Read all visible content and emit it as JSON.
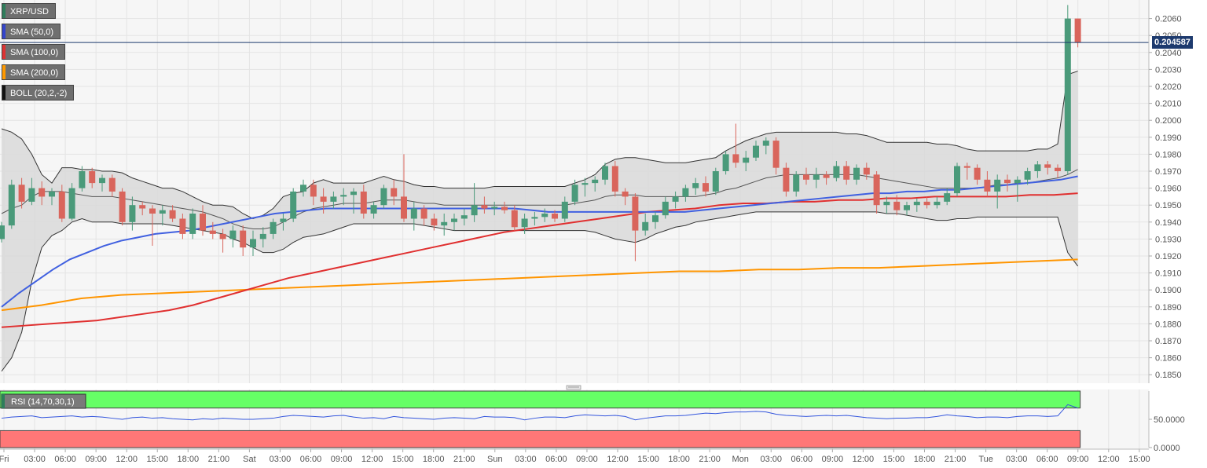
{
  "legend": [
    {
      "label": "XRP/USD",
      "color": "#2e7d5b"
    },
    {
      "label": "SMA (50,0)",
      "color": "#3344cc"
    },
    {
      "label": "SMA (100,0)",
      "color": "#dd3333"
    },
    {
      "label": "SMA (200,0)",
      "color": "#ff9900"
    },
    {
      "label": "BOLL (20,2,-2)",
      "color": "#111111"
    }
  ],
  "rsi_label": "RSI (14,70,30,1)",
  "current_price": "0.204587",
  "colors": {
    "up": "#4a9a7a",
    "down": "#d9655c",
    "sma50": "#4060e0",
    "sma100": "#e03030",
    "sma200": "#ff9500",
    "boll": "#333333",
    "rsi": "#3355dd",
    "overbought": "#66ff66",
    "oversold": "#ff7777"
  },
  "chart_data": {
    "type": "candlestick",
    "symbol": "XRP/USD",
    "ylim": [
      0.1845,
      0.207
    ],
    "y_ticks": [
      "0.2060",
      "0.2050",
      "0.2040",
      "0.2030",
      "0.2020",
      "0.2010",
      "0.2000",
      "0.1990",
      "0.1980",
      "0.1970",
      "0.1960",
      "0.1950",
      "0.1940",
      "0.1930",
      "0.1920",
      "0.1910",
      "0.1900",
      "0.1890",
      "0.1880",
      "0.1870",
      "0.1860",
      "0.1850"
    ],
    "x_ticks": [
      "Fri",
      "03:00",
      "06:00",
      "09:00",
      "12:00",
      "15:00",
      "18:00",
      "21:00",
      "Sat",
      "03:00",
      "06:00",
      "09:00",
      "12:00",
      "15:00",
      "18:00",
      "21:00",
      "Sun",
      "03:00",
      "06:00",
      "09:00",
      "12:00",
      "15:00",
      "18:00",
      "21:00",
      "Mon",
      "03:00",
      "06:00",
      "09:00",
      "12:00",
      "15:00",
      "18:00",
      "21:00",
      "Tue",
      "03:00",
      "06:00",
      "09:00",
      "12:00",
      "15:00"
    ],
    "candles": [
      [
        0.193,
        0.194,
        0.1928,
        0.1938
      ],
      [
        0.1938,
        0.1965,
        0.1936,
        0.1962
      ],
      [
        0.1962,
        0.1966,
        0.1948,
        0.1952
      ],
      [
        0.1952,
        0.1966,
        0.195,
        0.196
      ],
      [
        0.196,
        0.1964,
        0.195,
        0.1955
      ],
      [
        0.1955,
        0.196,
        0.195,
        0.1958
      ],
      [
        0.1958,
        0.1962,
        0.194,
        0.1942
      ],
      [
        0.1942,
        0.1963,
        0.1941,
        0.196
      ],
      [
        0.196,
        0.1973,
        0.1958,
        0.197
      ],
      [
        0.197,
        0.1972,
        0.196,
        0.1963
      ],
      [
        0.1963,
        0.1968,
        0.1958,
        0.1966
      ],
      [
        0.1966,
        0.1968,
        0.1955,
        0.1958
      ],
      [
        0.1958,
        0.196,
        0.1938,
        0.194
      ],
      [
        0.194,
        0.1955,
        0.1935,
        0.195
      ],
      [
        0.195,
        0.1952,
        0.1944,
        0.1948
      ],
      [
        0.1948,
        0.195,
        0.1926,
        0.1945
      ],
      [
        0.1945,
        0.195,
        0.1938,
        0.1947
      ],
      [
        0.1947,
        0.195,
        0.194,
        0.1942
      ],
      [
        0.1942,
        0.1945,
        0.193,
        0.1933
      ],
      [
        0.1933,
        0.1948,
        0.193,
        0.1945
      ],
      [
        0.1945,
        0.195,
        0.1932,
        0.1935
      ],
      [
        0.1935,
        0.194,
        0.193,
        0.1933
      ],
      [
        0.1933,
        0.1936,
        0.1922,
        0.193
      ],
      [
        0.193,
        0.1938,
        0.1925,
        0.1935
      ],
      [
        0.1935,
        0.1938,
        0.192,
        0.1925
      ],
      [
        0.1925,
        0.1935,
        0.192,
        0.193
      ],
      [
        0.193,
        0.1937,
        0.1925,
        0.1933
      ],
      [
        0.1933,
        0.1942,
        0.193,
        0.194
      ],
      [
        0.194,
        0.1945,
        0.1935,
        0.1942
      ],
      [
        0.1942,
        0.196,
        0.194,
        0.1958
      ],
      [
        0.1958,
        0.1965,
        0.1955,
        0.1962
      ],
      [
        0.1962,
        0.1965,
        0.195,
        0.1955
      ],
      [
        0.1955,
        0.196,
        0.1945,
        0.1952
      ],
      [
        0.1952,
        0.1958,
        0.1948,
        0.1955
      ],
      [
        0.1955,
        0.196,
        0.195,
        0.1956
      ],
      [
        0.1956,
        0.196,
        0.1945,
        0.1958
      ],
      [
        0.1958,
        0.1962,
        0.1942,
        0.1945
      ],
      [
        0.1945,
        0.1952,
        0.1942,
        0.195
      ],
      [
        0.195,
        0.1962,
        0.1948,
        0.196
      ],
      [
        0.196,
        0.1965,
        0.195,
        0.1955
      ],
      [
        0.1955,
        0.198,
        0.194,
        0.1942
      ],
      [
        0.1942,
        0.1952,
        0.1935,
        0.1948
      ],
      [
        0.1948,
        0.195,
        0.1938,
        0.1942
      ],
      [
        0.1942,
        0.1945,
        0.1935,
        0.1938
      ],
      [
        0.1938,
        0.1945,
        0.1932,
        0.194
      ],
      [
        0.194,
        0.1945,
        0.1935,
        0.1942
      ],
      [
        0.1942,
        0.1948,
        0.1938,
        0.1944
      ],
      [
        0.1944,
        0.1963,
        0.194,
        0.195
      ],
      [
        0.195,
        0.1955,
        0.1945,
        0.1948
      ],
      [
        0.1948,
        0.1952,
        0.1944,
        0.1949
      ],
      [
        0.1949,
        0.1952,
        0.1945,
        0.1947
      ],
      [
        0.1947,
        0.195,
        0.1935,
        0.1937
      ],
      [
        0.1937,
        0.1945,
        0.1933,
        0.1942
      ],
      [
        0.1942,
        0.1946,
        0.1938,
        0.1943
      ],
      [
        0.1943,
        0.1948,
        0.194,
        0.1945
      ],
      [
        0.1945,
        0.1947,
        0.194,
        0.1942
      ],
      [
        0.1942,
        0.1955,
        0.194,
        0.1952
      ],
      [
        0.1952,
        0.1965,
        0.195,
        0.1962
      ],
      [
        0.1962,
        0.1966,
        0.1955,
        0.1963
      ],
      [
        0.1963,
        0.1967,
        0.1958,
        0.1965
      ],
      [
        0.1965,
        0.1975,
        0.1962,
        0.1973
      ],
      [
        0.1973,
        0.1976,
        0.1955,
        0.1958
      ],
      [
        0.1958,
        0.196,
        0.195,
        0.1955
      ],
      [
        0.1955,
        0.1957,
        0.1917,
        0.1935
      ],
      [
        0.1935,
        0.1945,
        0.1932,
        0.194
      ],
      [
        0.194,
        0.1946,
        0.1936,
        0.1944
      ],
      [
        0.1944,
        0.1955,
        0.1942,
        0.1952
      ],
      [
        0.1952,
        0.1958,
        0.1948,
        0.1955
      ],
      [
        0.1955,
        0.1962,
        0.1952,
        0.196
      ],
      [
        0.196,
        0.1966,
        0.1956,
        0.1963
      ],
      [
        0.1963,
        0.1967,
        0.1955,
        0.1958
      ],
      [
        0.1958,
        0.1972,
        0.1956,
        0.197
      ],
      [
        0.197,
        0.1982,
        0.1968,
        0.198
      ],
      [
        0.198,
        0.1998,
        0.1972,
        0.1975
      ],
      [
        0.1975,
        0.1982,
        0.197,
        0.1978
      ],
      [
        0.1978,
        0.1988,
        0.1976,
        0.1985
      ],
      [
        0.1985,
        0.199,
        0.198,
        0.1988
      ],
      [
        0.1988,
        0.199,
        0.1968,
        0.1972
      ],
      [
        0.1972,
        0.1975,
        0.1955,
        0.1958
      ],
      [
        0.1958,
        0.197,
        0.1955,
        0.1968
      ],
      [
        0.1968,
        0.1972,
        0.1962,
        0.1965
      ],
      [
        0.1965,
        0.1972,
        0.196,
        0.1968
      ],
      [
        0.1968,
        0.197,
        0.1962,
        0.1966
      ],
      [
        0.1966,
        0.1976,
        0.1964,
        0.1973
      ],
      [
        0.1973,
        0.1976,
        0.1962,
        0.1965
      ],
      [
        0.1965,
        0.1974,
        0.1962,
        0.1972
      ],
      [
        0.1972,
        0.1975,
        0.1965,
        0.1968
      ],
      [
        0.1968,
        0.197,
        0.1945,
        0.195
      ],
      [
        0.195,
        0.1955,
        0.1945,
        0.1952
      ],
      [
        0.1952,
        0.1956,
        0.1944,
        0.1947
      ],
      [
        0.1947,
        0.1952,
        0.1944,
        0.195
      ],
      [
        0.195,
        0.1954,
        0.1946,
        0.1952
      ],
      [
        0.1952,
        0.1955,
        0.1948,
        0.195
      ],
      [
        0.195,
        0.1955,
        0.1948,
        0.1952
      ],
      [
        0.1952,
        0.196,
        0.195,
        0.1957
      ],
      [
        0.1957,
        0.1975,
        0.1955,
        0.1973
      ],
      [
        0.1973,
        0.1975,
        0.1965,
        0.1972
      ],
      [
        0.1972,
        0.1974,
        0.1962,
        0.1965
      ],
      [
        0.1965,
        0.197,
        0.1955,
        0.1958
      ],
      [
        0.1958,
        0.1968,
        0.1948,
        0.1965
      ],
      [
        0.1965,
        0.1968,
        0.1958,
        0.1963
      ],
      [
        0.1963,
        0.1967,
        0.1952,
        0.1965
      ],
      [
        0.1965,
        0.1972,
        0.1962,
        0.197
      ],
      [
        0.197,
        0.1976,
        0.1966,
        0.1974
      ],
      [
        0.1974,
        0.1976,
        0.1968,
        0.1972
      ],
      [
        0.1972,
        0.1974,
        0.1966,
        0.197
      ],
      [
        0.197,
        0.2068,
        0.1968,
        0.206
      ],
      [
        0.206,
        0.206,
        0.2043,
        0.2046
      ]
    ],
    "bollinger_upper": [
      0.1995,
      0.1993,
      0.1989,
      0.198,
      0.1968,
      0.1963,
      0.1972,
      0.1972,
      0.1971,
      0.1971,
      0.197,
      0.197,
      0.1969,
      0.1966,
      0.1964,
      0.1962,
      0.196,
      0.196,
      0.1958,
      0.1955,
      0.1952,
      0.195,
      0.195,
      0.1949,
      0.1945,
      0.1942,
      0.1944,
      0.1948,
      0.1955,
      0.1957,
      0.1958,
      0.1963,
      0.1965,
      0.1963,
      0.1963,
      0.1963,
      0.1963,
      0.1965,
      0.1967,
      0.1965,
      0.1964,
      0.1962,
      0.1961,
      0.1961,
      0.196,
      0.196,
      0.196,
      0.196,
      0.196,
      0.1961,
      0.1961,
      0.1961,
      0.1961,
      0.1961,
      0.1961,
      0.1961,
      0.1961,
      0.1963,
      0.1965,
      0.1968,
      0.1974,
      0.1977,
      0.1978,
      0.1978,
      0.1977,
      0.1976,
      0.1975,
      0.1975,
      0.1975,
      0.1976,
      0.1977,
      0.1978,
      0.1982,
      0.1985,
      0.1988,
      0.199,
      0.1992,
      0.1993,
      0.1993,
      0.1993,
      0.1993,
      0.1993,
      0.1993,
      0.1993,
      0.1992,
      0.1992,
      0.1991,
      0.1989,
      0.1987,
      0.1987,
      0.1987,
      0.1987,
      0.1987,
      0.1986,
      0.1986,
      0.1985,
      0.1983,
      0.1982,
      0.1982,
      0.1982,
      0.1982,
      0.1982,
      0.1982,
      0.1983,
      0.1983,
      0.1986,
      0.2027,
      0.2029
    ],
    "bollinger_mid": [
      0.1945,
      0.1948,
      0.195,
      0.1955,
      0.1958,
      0.1958,
      0.1958,
      0.1957,
      0.1956,
      0.1955,
      0.1955,
      0.1955,
      0.1954,
      0.1953,
      0.1952,
      0.1951,
      0.195,
      0.1949,
      0.1948,
      0.1947,
      0.1946,
      0.1944,
      0.1942,
      0.1939,
      0.1937,
      0.1936,
      0.1936,
      0.1937,
      0.194,
      0.1943,
      0.1946,
      0.1948,
      0.1949,
      0.195,
      0.1951,
      0.1951,
      0.1951,
      0.1952,
      0.1953,
      0.1953,
      0.1953,
      0.1952,
      0.1951,
      0.1951,
      0.195,
      0.195,
      0.195,
      0.195,
      0.195,
      0.195,
      0.195,
      0.195,
      0.195,
      0.195,
      0.195,
      0.195,
      0.195,
      0.1951,
      0.1952,
      0.1953,
      0.1955,
      0.1956,
      0.1956,
      0.1956,
      0.1955,
      0.1955,
      0.1955,
      0.1955,
      0.1955,
      0.1955,
      0.1956,
      0.1957,
      0.1959,
      0.196,
      0.1962,
      0.1964,
      0.1966,
      0.1967,
      0.1968,
      0.1968,
      0.1968,
      0.1968,
      0.1968,
      0.1968,
      0.1968,
      0.1968,
      0.1967,
      0.1966,
      0.1965,
      0.1964,
      0.1963,
      0.1962,
      0.1961,
      0.196,
      0.196,
      0.196,
      0.196,
      0.196,
      0.1961,
      0.1962,
      0.1962,
      0.1963,
      0.1963,
      0.1964,
      0.1965,
      0.1966,
      0.1968,
      0.1971
    ],
    "bollinger_lower": [
      0.1852,
      0.186,
      0.1875,
      0.1905,
      0.1925,
      0.1932,
      0.1935,
      0.194,
      0.1942,
      0.194,
      0.194,
      0.194,
      0.1939,
      0.1939,
      0.1939,
      0.1939,
      0.1939,
      0.1938,
      0.1937,
      0.1936,
      0.1935,
      0.1934,
      0.1933,
      0.193,
      0.1928,
      0.1925,
      0.1922,
      0.1922,
      0.1924,
      0.1928,
      0.1931,
      0.1932,
      0.1933,
      0.1935,
      0.1937,
      0.1939,
      0.1939,
      0.1939,
      0.1939,
      0.1939,
      0.1939,
      0.1939,
      0.1938,
      0.1937,
      0.1936,
      0.1935,
      0.1935,
      0.1935,
      0.1935,
      0.1935,
      0.1935,
      0.1935,
      0.1935,
      0.1935,
      0.1935,
      0.1935,
      0.1935,
      0.1935,
      0.1935,
      0.1934,
      0.1932,
      0.193,
      0.1929,
      0.1928,
      0.193,
      0.1933,
      0.1935,
      0.1937,
      0.1938,
      0.194,
      0.1941,
      0.1942,
      0.1943,
      0.1944,
      0.1945,
      0.1946,
      0.1946,
      0.1946,
      0.1946,
      0.1946,
      0.1946,
      0.1946,
      0.1946,
      0.1946,
      0.1946,
      0.1946,
      0.1946,
      0.1946,
      0.1945,
      0.1945,
      0.1944,
      0.1943,
      0.1942,
      0.1941,
      0.1941,
      0.1942,
      0.1942,
      0.1943,
      0.1943,
      0.1943,
      0.1943,
      0.1943,
      0.1943,
      0.1943,
      0.1943,
      0.1943,
      0.1922,
      0.1914
    ],
    "sma50": [
      0.189,
      0.1898,
      0.1905,
      0.1912,
      0.1918,
      0.1922,
      0.1926,
      0.1929,
      0.1931,
      0.1933,
      0.1934,
      0.1935,
      0.1937,
      0.1939,
      0.1941,
      0.1943,
      0.1945,
      0.1946,
      0.1947,
      0.1948,
      0.1948,
      0.1948,
      0.1948,
      0.1948,
      0.1948,
      0.1948,
      0.1948,
      0.1948,
      0.1948,
      0.1948,
      0.1948,
      0.1947,
      0.1946,
      0.1946,
      0.1946,
      0.1946,
      0.1946,
      0.1946,
      0.1946,
      0.1946,
      0.1946,
      0.1947,
      0.1948,
      0.1949,
      0.195,
      0.1951,
      0.1952,
      0.1953,
      0.1954,
      0.1955,
      0.1956,
      0.1957,
      0.1957,
      0.1958,
      0.1958,
      0.1959,
      0.1959,
      0.196,
      0.1961,
      0.1962,
      0.1963,
      0.1964,
      0.1965,
      0.1967
    ],
    "sma100": [
      0.1878,
      0.1879,
      0.188,
      0.1881,
      0.1882,
      0.1884,
      0.1886,
      0.1888,
      0.1891,
      0.1895,
      0.1899,
      0.1903,
      0.1907,
      0.191,
      0.1913,
      0.1916,
      0.1919,
      0.1922,
      0.1925,
      0.1928,
      0.1931,
      0.1934,
      0.1936,
      0.1938,
      0.194,
      0.1942,
      0.1944,
      0.1946,
      0.1947,
      0.1948,
      0.195,
      0.1951,
      0.1951,
      0.1952,
      0.1952,
      0.1953,
      0.1953,
      0.1954,
      0.1954,
      0.1955,
      0.1955,
      0.1955,
      0.1955,
      0.1956,
      0.1956,
      0.1957
    ],
    "sma200": [
      0.1888,
      0.1891,
      0.1895,
      0.1897,
      0.1898,
      0.1899,
      0.19,
      0.1901,
      0.1902,
      0.1903,
      0.1904,
      0.1905,
      0.1906,
      0.1907,
      0.1908,
      0.1909,
      0.191,
      0.1911,
      0.1911,
      0.1912,
      0.1912,
      0.1913,
      0.1913,
      0.1914,
      0.1915,
      0.1916,
      0.1917,
      0.1918
    ],
    "rsi": {
      "ylim": [
        0,
        100
      ],
      "y_ticks": [
        "50.0000",
        "0.0000"
      ],
      "values": [
        52,
        54,
        55,
        56,
        53,
        54,
        55,
        56,
        54,
        55,
        54,
        52,
        50,
        53,
        54,
        52,
        53,
        51,
        50,
        49,
        51,
        50,
        52,
        51,
        50,
        50,
        51,
        52,
        55,
        57,
        56,
        55,
        54,
        56,
        57,
        54,
        52,
        53,
        51,
        55,
        53,
        52,
        51,
        50,
        52,
        53,
        52,
        51,
        55,
        54,
        54,
        53,
        49,
        52,
        54,
        54,
        53,
        56,
        58,
        57,
        56,
        57,
        55,
        49,
        52,
        54,
        56,
        56,
        57,
        59,
        61,
        60,
        62,
        63,
        63,
        64,
        63,
        59,
        57,
        56,
        55,
        56,
        57,
        56,
        57,
        55,
        53,
        52,
        51,
        52,
        52,
        53,
        53,
        55,
        58,
        56,
        55,
        53,
        54,
        54,
        53,
        55,
        56,
        56,
        55,
        56,
        76,
        70
      ]
    }
  }
}
